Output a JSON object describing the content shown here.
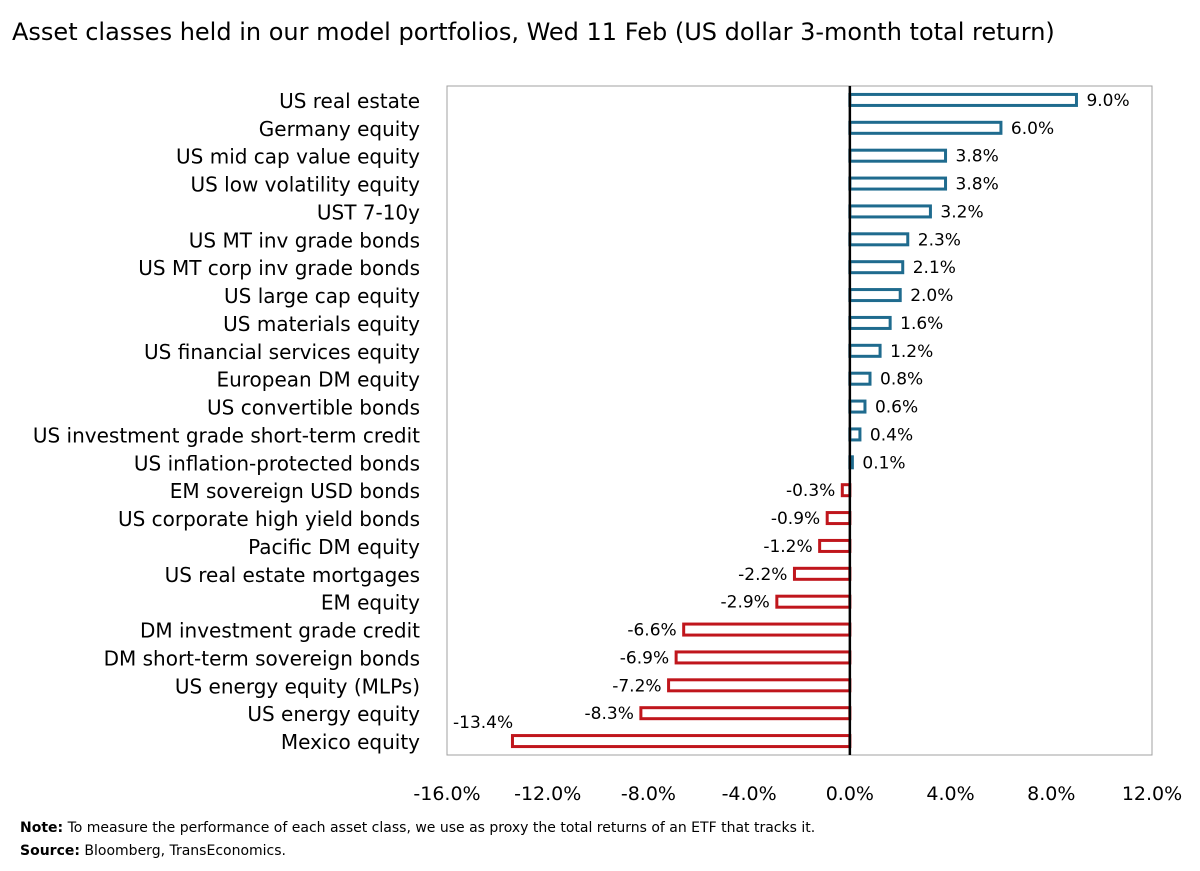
{
  "title": "Asset classes held in our model portfolios, Wed 11 Feb (US dollar 3-month total return)",
  "note": {
    "label": "Note:",
    "text": " To measure the performance of each asset class, we use as proxy the total returns of an ETF that tracks it."
  },
  "source": {
    "label": "Source:",
    "text": " Bloomberg, TransEconomics."
  },
  "colors": {
    "positive": "#1f6b8e",
    "negative": "#c0161c",
    "axis": "#000000",
    "frame": "#a0a0a0"
  },
  "chart_data": {
    "type": "bar",
    "orientation": "horizontal",
    "categories": [
      "US real estate",
      "Germany equity",
      "US mid cap value equity",
      "US low volatility equity",
      "UST 7-10y",
      "US MT inv grade bonds",
      "US MT corp inv grade bonds",
      "US large cap equity",
      "US materials equity",
      "US financial services equity",
      "European DM equity",
      "US convertible bonds",
      "US investment grade short-term credit",
      "US inflation-protected bonds",
      "EM sovereign USD bonds",
      "US corporate high yield bonds",
      "Pacific DM equity",
      "US real estate mortgages",
      "EM equity",
      "DM investment grade credit ",
      "DM short-term sovereign bonds",
      "US energy equity (MLPs)",
      "US energy equity",
      "Mexico equity"
    ],
    "values": [
      9.0,
      6.0,
      3.8,
      3.8,
      3.2,
      2.3,
      2.1,
      2.0,
      1.6,
      1.2,
      0.8,
      0.6,
      0.4,
      0.1,
      -0.3,
      -0.9,
      -1.2,
      -2.2,
      -2.9,
      -6.6,
      -6.9,
      -7.2,
      -8.3,
      -13.4
    ],
    "data_labels": [
      "9.0%",
      "6.0%",
      "3.8%",
      "3.8%",
      "3.2%",
      "2.3%",
      "2.1%",
      "2.0%",
      "1.6%",
      "1.2%",
      "0.8%",
      "0.6%",
      "0.4%",
      "0.1%",
      "-0.3%",
      "-0.9%",
      "-1.2%",
      "-2.2%",
      "-2.9%",
      "-6.6%",
      "-6.9%",
      "-7.2%",
      "-8.3%",
      "-13.4%"
    ],
    "xlim": [
      -16,
      12
    ],
    "ticks": [
      -16,
      -12,
      -8,
      -4,
      0,
      4,
      8,
      12
    ],
    "tick_labels": [
      "-16.0%",
      "-12.0%",
      "-8.0%",
      "-4.0%",
      "0.0%",
      "4.0%",
      "8.0%",
      "12.0%"
    ],
    "grid": false,
    "legend": "none"
  }
}
